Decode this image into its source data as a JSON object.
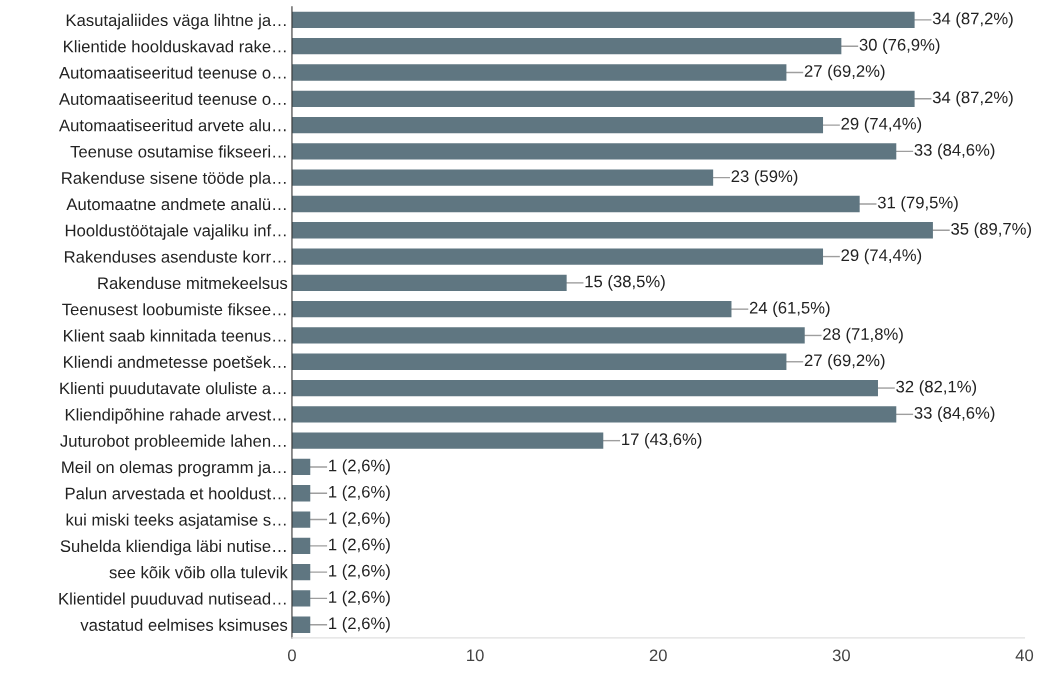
{
  "chart_data": {
    "type": "bar",
    "orientation": "horizontal",
    "color": "#5f7681",
    "categories": [
      "Kasutajaliides väga lihtne ja…",
      "Klientide hoolduskavad rake…",
      "Automaatiseeritud teenuse o…",
      "Automaatiseeritud teenuse o…",
      "Automaatiseeritud arvete alu…",
      "Teenuse osutamise fikseeri…",
      "Rakenduse sisene tööde pla…",
      "Automaatne andmete analü…",
      "Hooldustöötajale vajaliku inf…",
      "Rakenduses asenduste korr…",
      "Rakenduse mitmekeelsus",
      "Teenusest loobumiste fiksee…",
      "Klient saab kinnitada teenus…",
      "Kliendi andmetesse poetšek…",
      "Klienti puudutavate oluliste a…",
      "Kliendipõhine rahade arvest…",
      "Juturobot probleemide lahen…",
      "Meil on olemas programm ja…",
      "Palun arvestada et hooldust…",
      "kui miski teeks asjatamise s…",
      "Suhelda kliendiga läbi nutise…",
      "see kõik võib olla tulevik",
      "Klientidel puuduvad nutisead…",
      "vastatud eelmises ksimuses"
    ],
    "values": [
      34,
      30,
      27,
      34,
      29,
      33,
      23,
      31,
      35,
      29,
      15,
      24,
      28,
      27,
      32,
      33,
      17,
      1,
      1,
      1,
      1,
      1,
      1,
      1
    ],
    "value_labels": [
      "34 (87,2%)",
      "30 (76,9%)",
      "27 (69,2%)",
      "34 (87,2%)",
      "29 (74,4%)",
      "33 (84,6%)",
      "23 (59%)",
      "31 (79,5%)",
      "35 (89,7%)",
      "29 (74,4%)",
      "15 (38,5%)",
      "24 (61,5%)",
      "28 (71,8%)",
      "27 (69,2%)",
      "32 (82,1%)",
      "33 (84,6%)",
      "17 (43,6%)",
      "1 (2,6%)",
      "1 (2,6%)",
      "1 (2,6%)",
      "1 (2,6%)",
      "1 (2,6%)",
      "1 (2,6%)",
      "1 (2,6%)"
    ],
    "xlim": [
      0,
      40
    ],
    "xticks": [
      0,
      10,
      20,
      30,
      40
    ],
    "grid": false,
    "legend": false
  }
}
